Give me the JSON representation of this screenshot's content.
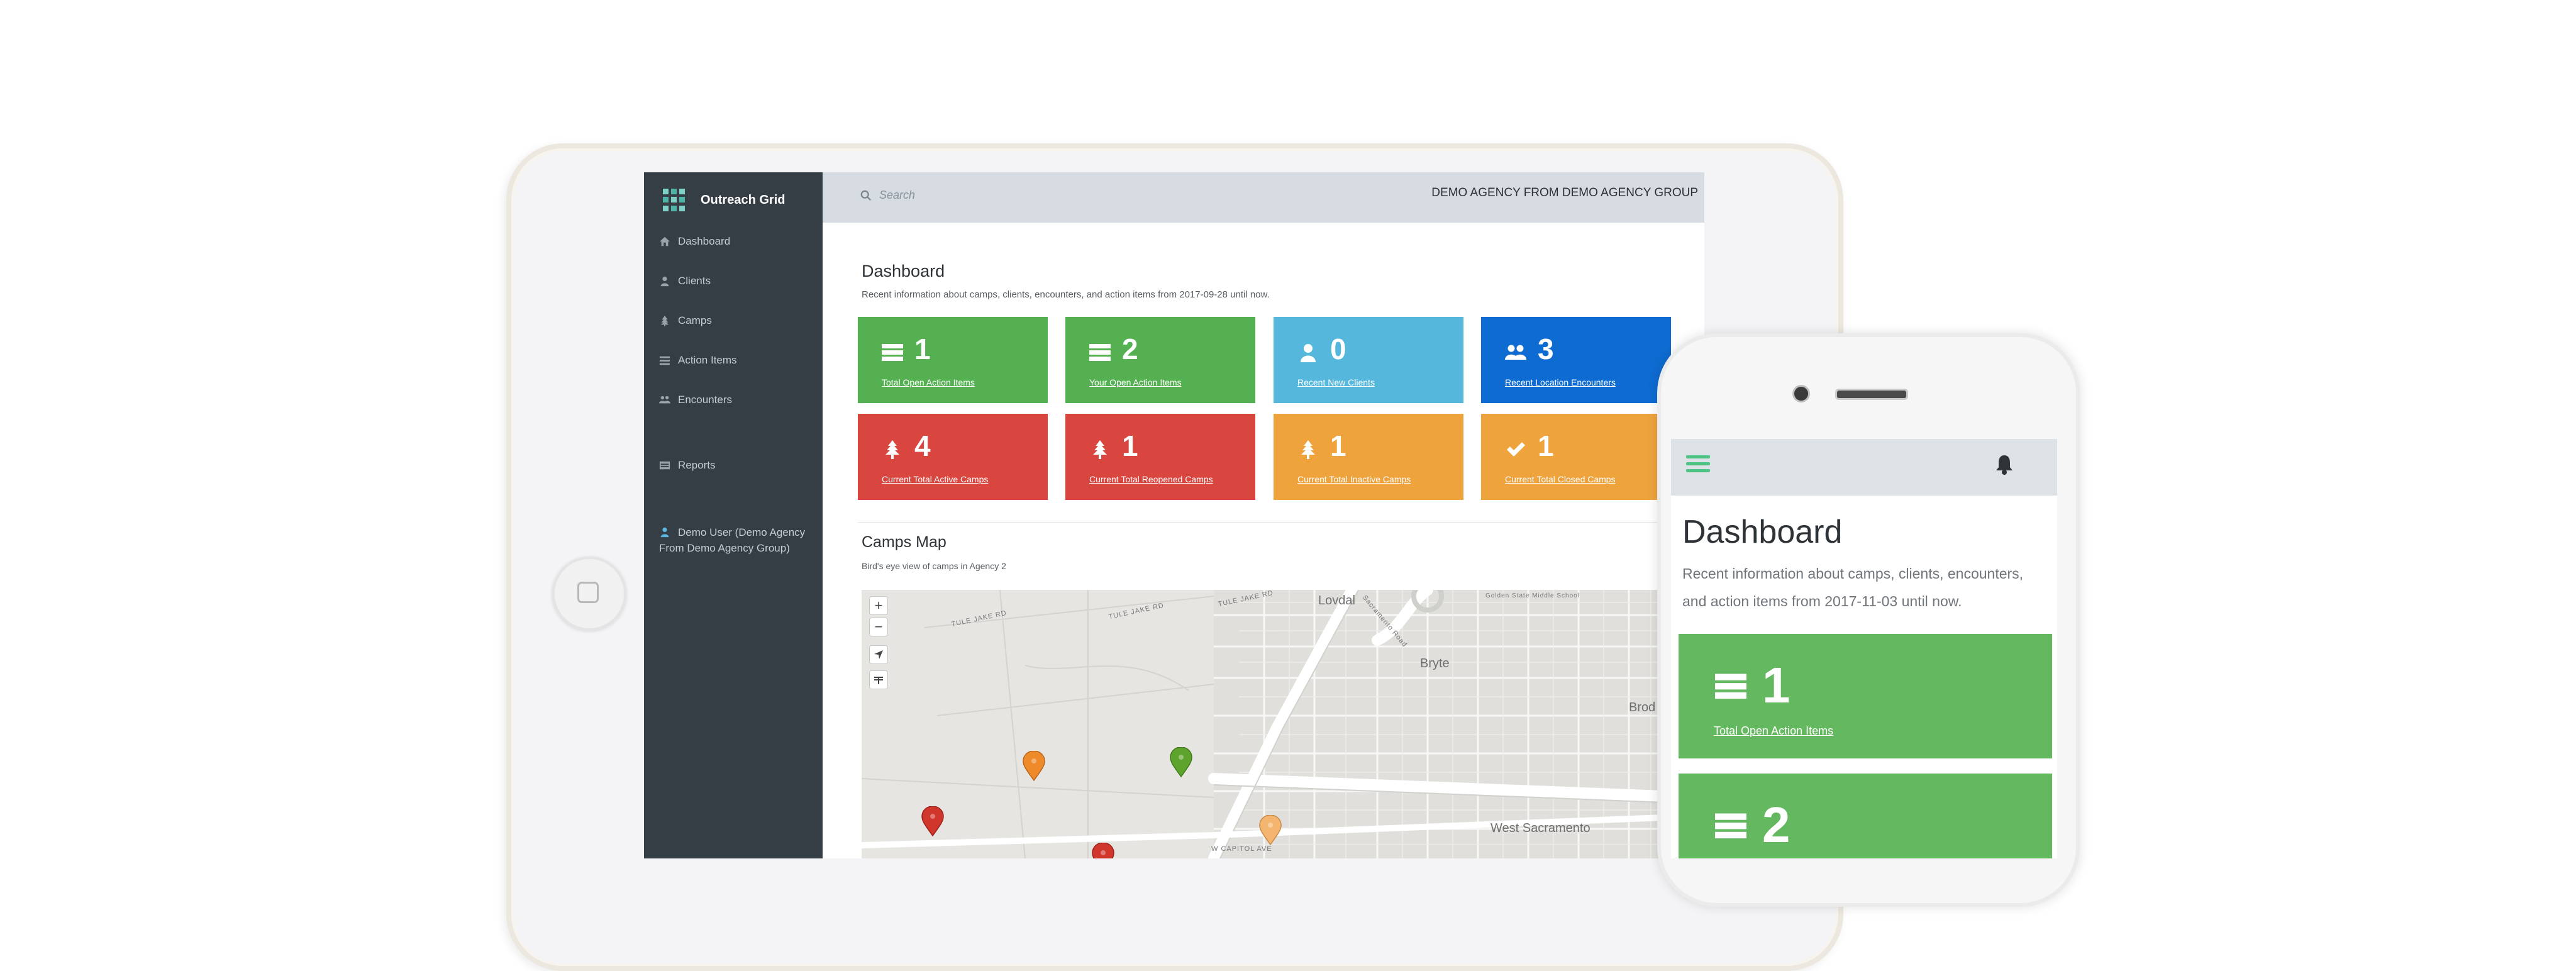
{
  "app": {
    "name": "Outreach Grid",
    "agency": "DEMO AGENCY FROM DEMO AGENCY GROUP",
    "search_placeholder": "Search"
  },
  "sidebar": {
    "items": [
      {
        "label": "Dashboard",
        "icon": "home-icon"
      },
      {
        "label": "Clients",
        "icon": "user-icon"
      },
      {
        "label": "Camps",
        "icon": "tree-icon"
      },
      {
        "label": "Action Items",
        "icon": "list-icon"
      },
      {
        "label": "Encounters",
        "icon": "users-icon"
      },
      {
        "label": "Reports",
        "icon": "table-icon"
      }
    ],
    "user": "Demo User (Demo Agency From Demo Agency Group)"
  },
  "dashboard": {
    "title": "Dashboard",
    "subtitle": "Recent information about camps, clients, encounters, and action items from 2017-09-28 until now.",
    "cards": [
      {
        "value": "1",
        "label": "Total Open Action Items",
        "icon": "server-icon",
        "color": "#55b052"
      },
      {
        "value": "2",
        "label": "Your Open Action Items",
        "icon": "server-icon",
        "color": "#55b052"
      },
      {
        "value": "0",
        "label": "Recent New Clients",
        "icon": "user-icon",
        "color": "#55b7dc"
      },
      {
        "value": "3",
        "label": "Recent Location Encounters",
        "icon": "users-icon",
        "color": "#0e6bd1"
      },
      {
        "value": "4",
        "label": "Current Total Active Camps",
        "icon": "tree-icon",
        "color": "#d9453f"
      },
      {
        "value": "1",
        "label": "Current Total Reopened Camps",
        "icon": "tree-icon",
        "color": "#d9453f"
      },
      {
        "value": "1",
        "label": "Current Total Inactive Camps",
        "icon": "tree-icon",
        "color": "#eea33d"
      },
      {
        "value": "1",
        "label": "Current Total Closed Camps",
        "icon": "check-icon",
        "color": "#eea33d"
      }
    ]
  },
  "map": {
    "title": "Camps Map",
    "subtitle": "Bird's eye view of camps in Agency 2",
    "zoom_in": "+",
    "zoom_out": "−",
    "places": [
      "Lovdal",
      "Bryte",
      "Brod",
      "West Sacramento",
      "Golden State Middle School"
    ],
    "roads": [
      "TULE JAKE RD",
      "TULE JAKE RD",
      "TULE JAKE RD",
      "Sacramento Road",
      "W CAPITOL AVE"
    ],
    "pins": [
      {
        "color": "#ee8a2a"
      },
      {
        "color": "#5ea42c"
      },
      {
        "color": "#d0362b"
      },
      {
        "color": "#f3b56f"
      },
      {
        "color": "#d0362b"
      }
    ]
  },
  "phone": {
    "title": "Dashboard",
    "subtitle": "Recent information about camps, clients, encounters, and action items from 2017-11-03 until now.",
    "cards": [
      {
        "value": "1",
        "label": "Total Open Action Items",
        "icon": "server-icon"
      },
      {
        "value": "2",
        "label": "",
        "icon": "server-icon"
      }
    ]
  }
}
